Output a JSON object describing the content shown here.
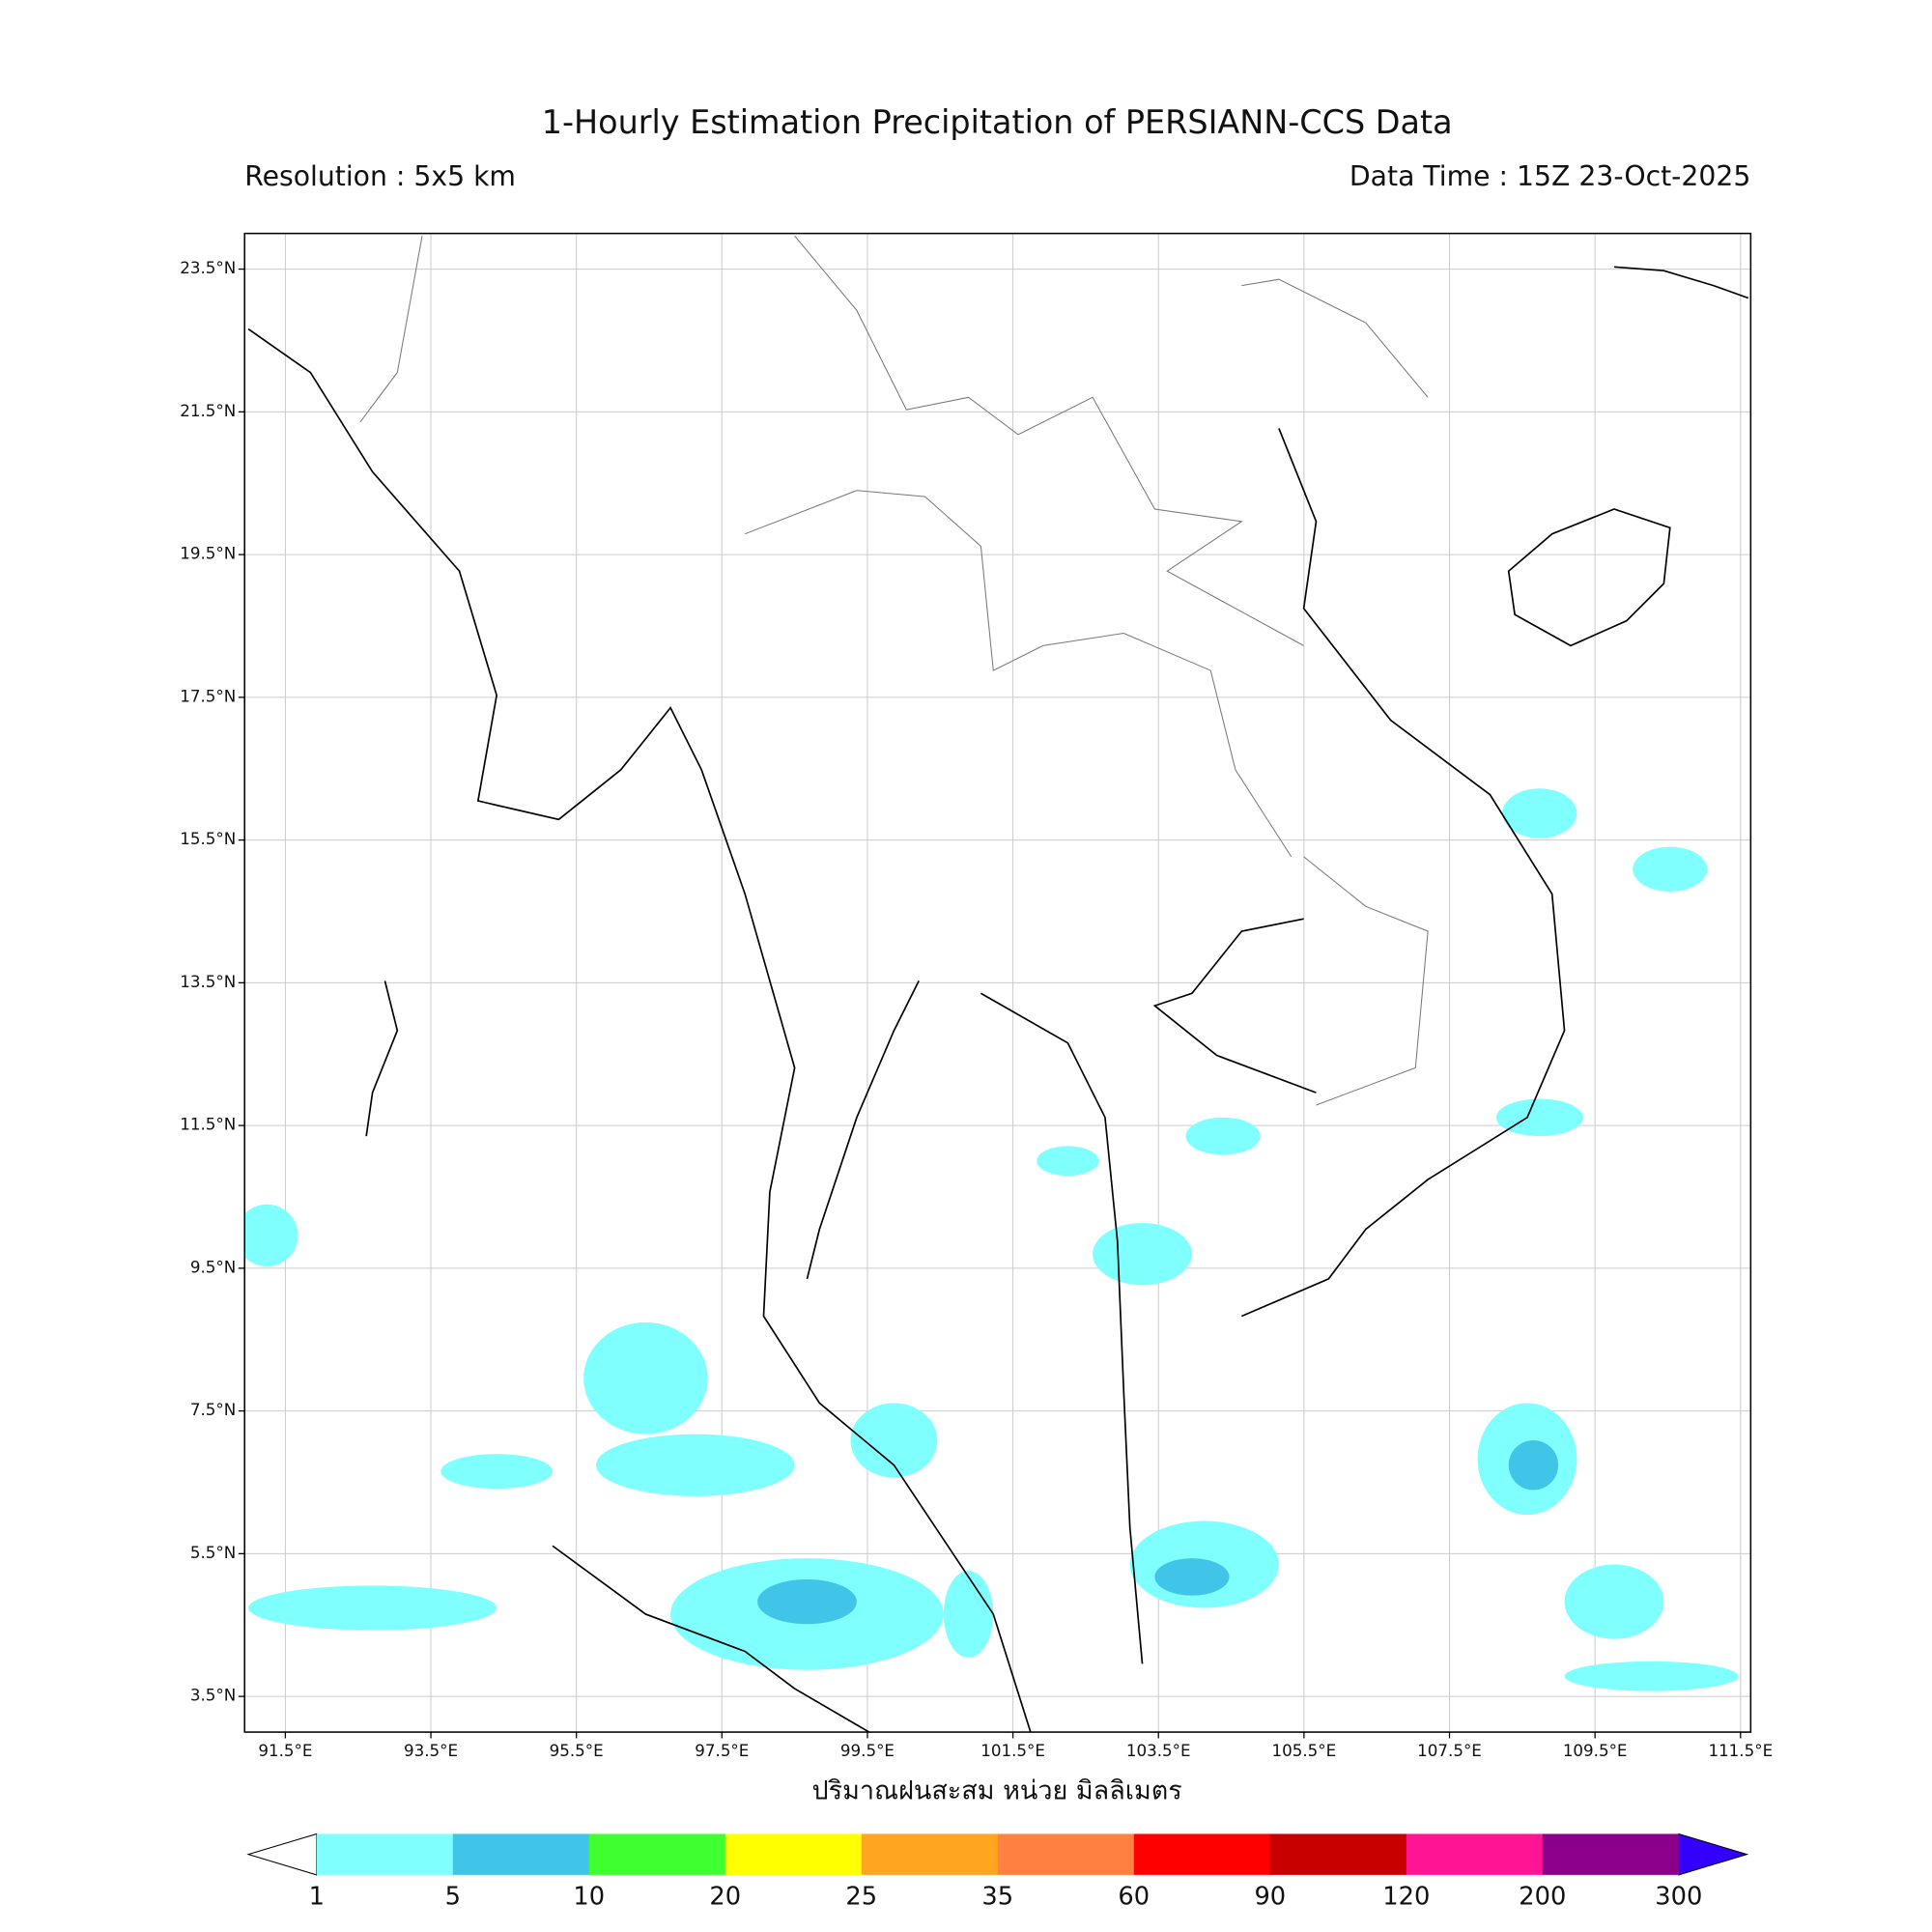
{
  "header": {
    "title": "1-Hourly Estimation Precipitation of PERSIANN-CCS Data",
    "resolution": "Resolution : 5x5 km",
    "data_time": "Data Time : 15Z 23-Oct-2025"
  },
  "map": {
    "lonlim": [
      90.94,
      111.64
    ],
    "latlim": [
      3.0,
      24.0
    ],
    "lat_ticks": [
      {
        "value": 23.5,
        "label": "23.5°N"
      },
      {
        "value": 21.5,
        "label": "21.5°N"
      },
      {
        "value": 19.5,
        "label": "19.5°N"
      },
      {
        "value": 17.5,
        "label": "17.5°N"
      },
      {
        "value": 15.5,
        "label": "15.5°N"
      },
      {
        "value": 13.5,
        "label": "13.5°N"
      },
      {
        "value": 11.5,
        "label": "11.5°N"
      },
      {
        "value": 9.5,
        "label": "9.5°N"
      },
      {
        "value": 7.5,
        "label": "7.5°N"
      },
      {
        "value": 5.5,
        "label": "5.5°N"
      },
      {
        "value": 3.5,
        "label": "3.5°N"
      }
    ],
    "lon_ticks": [
      {
        "value": 91.5,
        "label": "91.5°E"
      },
      {
        "value": 93.5,
        "label": "93.5°E"
      },
      {
        "value": 95.5,
        "label": "95.5°E"
      },
      {
        "value": 97.5,
        "label": "97.5°E"
      },
      {
        "value": 99.5,
        "label": "99.5°E"
      },
      {
        "value": 101.5,
        "label": "101.5°E"
      },
      {
        "value": 103.5,
        "label": "103.5°E"
      },
      {
        "value": 105.5,
        "label": "105.5°E"
      },
      {
        "value": 107.5,
        "label": "107.5°E"
      },
      {
        "value": 109.5,
        "label": "109.5°E"
      },
      {
        "value": 111.5,
        "label": "111.5°E"
      }
    ],
    "grid": true
  },
  "colorbar": {
    "label": "ปริมาณฝนสะสม หน่วย มิลลิเมตร",
    "levels": [
      1,
      5,
      10,
      20,
      25,
      35,
      60,
      90,
      120,
      200,
      300
    ],
    "colors": [
      "#80ffff",
      "#40c4e8",
      "#40ff30",
      "#ffff00",
      "#ffa520",
      "#ff8040",
      "#ff0000",
      "#c80000",
      "#ff1493",
      "#8b008b"
    ],
    "under_color": "#ffffff",
    "over_color": "#3300ff"
  }
}
